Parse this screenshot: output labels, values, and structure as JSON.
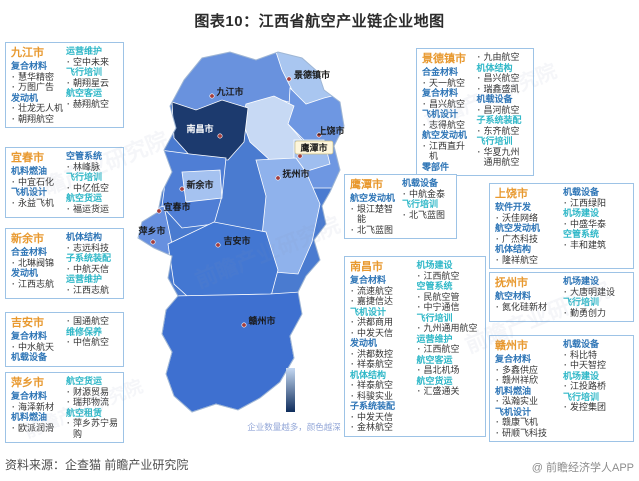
{
  "title": "图表10：江西省航空产业链企业地图",
  "footer": {
    "source": "资料来源：企查猫 前瞻产业研究院",
    "brand": "@ 前瞻经济学人APP"
  },
  "watermark": {
    "text": "前瞻产业研究院"
  },
  "legend": {
    "text": "企业数量越多，颜色越深",
    "top_color": "#C4D8F2",
    "bottom_color": "#0F2D5C"
  },
  "colors": {
    "city_title": "#E8992F",
    "category_blue": "#2E75B6",
    "category_cyan": "#31B8C8",
    "box_border": "#9DC3E6"
  },
  "city_boxes": [
    {
      "id": "jiujiang",
      "name": "九江市",
      "columns": [
        [
          {
            "cat": "复合材料",
            "tone": "b"
          },
          {
            "co": "慧华精密"
          },
          {
            "co": "万图广告"
          },
          {
            "cat": "发动机",
            "tone": "b"
          },
          {
            "co": "壮龙无人机"
          },
          {
            "co": "朝翔航空"
          }
        ],
        [
          {
            "cat": "运营维护",
            "tone": "c"
          },
          {
            "co": "空中未来"
          },
          {
            "cat": "飞行培训",
            "tone": "c"
          },
          {
            "co": "朝翔星云"
          },
          {
            "cat": "航空客运",
            "tone": "c"
          },
          {
            "co": "赫翔航空"
          }
        ]
      ]
    },
    {
      "id": "yichun",
      "name": "宜春市",
      "columns": [
        [
          {
            "cat": "机料燃油",
            "tone": "b"
          },
          {
            "co": "中宜石化"
          },
          {
            "cat": "飞机设计",
            "tone": "b"
          },
          {
            "co": "永益飞机"
          }
        ],
        [
          {
            "cat": "空管系统",
            "tone": "b"
          },
          {
            "co": "林峰脉"
          },
          {
            "cat": "飞行培训",
            "tone": "c"
          },
          {
            "co": "中亿低空"
          },
          {
            "cat": "航空货运",
            "tone": "c"
          },
          {
            "co": "福运货运"
          }
        ]
      ]
    },
    {
      "id": "xinyu",
      "name": "新余市",
      "columns": [
        [
          {
            "cat": "合金材料",
            "tone": "b"
          },
          {
            "co": "北琳阀锦"
          },
          {
            "cat": "发动机",
            "tone": "b"
          },
          {
            "co": "江西志航"
          }
        ],
        [
          {
            "cat": "机体结构",
            "tone": "b"
          },
          {
            "co": "志远科技"
          },
          {
            "cat": "子系统装配",
            "tone": "c"
          },
          {
            "co": "中航天信"
          },
          {
            "cat": "运营维护",
            "tone": "c"
          },
          {
            "co": "江西志航"
          }
        ]
      ]
    },
    {
      "id": "jian",
      "name": "吉安市",
      "columns": [
        [
          {
            "cat": "复合材料",
            "tone": "b"
          },
          {
            "co": "中水航天"
          },
          {
            "cat": "机载设备",
            "tone": "b"
          }
        ],
        [
          {
            "co": "国通航空"
          },
          {
            "cat": "维修保养",
            "tone": "c"
          },
          {
            "co": "中信航空"
          }
        ]
      ]
    },
    {
      "id": "pingxiang",
      "name": "萍乡市",
      "columns": [
        [
          {
            "cat": "复合材料",
            "tone": "b"
          },
          {
            "co": "海泽新材"
          },
          {
            "cat": "机料燃油",
            "tone": "b"
          },
          {
            "co": "欧派润滑"
          }
        ],
        [
          {
            "cat": "航空货运",
            "tone": "c"
          },
          {
            "co": "财源贸易"
          },
          {
            "co": "瑞邦物流"
          },
          {
            "cat": "航空租赁",
            "tone": "c"
          },
          {
            "co": "萍乡苏宁易购"
          }
        ]
      ]
    },
    {
      "id": "jingdezhen",
      "name": "景德镇市",
      "columns": [
        [
          {
            "cat": "合金材料",
            "tone": "b"
          },
          {
            "co": "天一航空"
          },
          {
            "cat": "复合材料",
            "tone": "b"
          },
          {
            "co": "昌兴航空"
          },
          {
            "cat": "飞机设计",
            "tone": "b"
          },
          {
            "co": "志得航空"
          },
          {
            "cat": "航空发动机",
            "tone": "b"
          },
          {
            "co": "江西直升机"
          },
          {
            "cat": "零部件",
            "tone": "b"
          }
        ],
        [
          {
            "co": "九由航空"
          },
          {
            "cat": "机体结构",
            "tone": "c"
          },
          {
            "co": "昌兴航空"
          },
          {
            "co": "瑞鑫盛凯"
          },
          {
            "cat": "机载设备",
            "tone": "b"
          },
          {
            "co": "昌河航空"
          },
          {
            "cat": "子系统装配",
            "tone": "c"
          },
          {
            "co": "东齐航空"
          },
          {
            "cat": "飞行培训",
            "tone": "c"
          },
          {
            "co": "华夏九州通用航空"
          }
        ]
      ]
    },
    {
      "id": "yingtan",
      "name": "鹰潭市",
      "columns": [
        [
          {
            "cat": "航空发动机",
            "tone": "b"
          },
          {
            "co": "垠江楚智能"
          },
          {
            "co": "北飞蓝图"
          }
        ],
        [
          {
            "cat": "机载设备",
            "tone": "b"
          },
          {
            "co": "中航金泰"
          },
          {
            "cat": "飞行培训",
            "tone": "c"
          },
          {
            "co": "北飞蓝图"
          }
        ]
      ]
    },
    {
      "id": "shangrao",
      "name": "上饶市",
      "columns": [
        [
          {
            "cat": "软件开发",
            "tone": "b"
          },
          {
            "co": "沃佳网络"
          },
          {
            "cat": "航空发动机",
            "tone": "b"
          },
          {
            "co": "广杰科技"
          },
          {
            "cat": "机体结构",
            "tone": "b"
          },
          {
            "co": "隆祥航空"
          }
        ],
        [
          {
            "cat": "机载设备",
            "tone": "b"
          },
          {
            "co": "江西绿阳"
          },
          {
            "cat": "机场建设",
            "tone": "c"
          },
          {
            "co": "中盛华泰"
          },
          {
            "cat": "空管系统",
            "tone": "c"
          },
          {
            "co": "丰和建筑"
          }
        ]
      ]
    },
    {
      "id": "fuzhou",
      "name": "抚州市",
      "columns": [
        [
          {
            "cat": "航空材料",
            "tone": "b"
          },
          {
            "co": "氮化硅新材"
          }
        ],
        [
          {
            "cat": "机场建设",
            "tone": "b"
          },
          {
            "co": "大唐明建设"
          },
          {
            "cat": "飞行培训",
            "tone": "c"
          },
          {
            "co": "勤勇创力"
          }
        ]
      ]
    },
    {
      "id": "ganzhou",
      "name": "赣州市",
      "columns": [
        [
          {
            "cat": "复合材料",
            "tone": "b"
          },
          {
            "co": "多鑫供应"
          },
          {
            "co": "赣州祥欣"
          },
          {
            "cat": "机料燃油",
            "tone": "b"
          },
          {
            "co": "泓瀚实业"
          },
          {
            "cat": "飞机设计",
            "tone": "b"
          },
          {
            "co": "赣康飞机"
          },
          {
            "co": "研顺飞科技"
          }
        ],
        [
          {
            "cat": "机载设备",
            "tone": "b"
          },
          {
            "co": "科比特"
          },
          {
            "co": "中天智控"
          },
          {
            "cat": "机场建设",
            "tone": "c"
          },
          {
            "co": "江投路桥"
          },
          {
            "cat": "飞行培训",
            "tone": "c"
          },
          {
            "co": "发控集团"
          }
        ]
      ]
    },
    {
      "id": "nanchang",
      "name": "南昌市",
      "columns": [
        [
          {
            "cat": "复合材料",
            "tone": "b"
          },
          {
            "co": "流速航空"
          },
          {
            "co": "嘉捷信达"
          },
          {
            "cat": "飞机设计",
            "tone": "c"
          },
          {
            "co": "洪都商用"
          },
          {
            "co": "中发天信"
          },
          {
            "cat": "发动机",
            "tone": "b"
          },
          {
            "co": "洪都数控"
          },
          {
            "co": "祥泰航空"
          },
          {
            "cat": "机体结构",
            "tone": "c"
          },
          {
            "co": "祥泰航空"
          },
          {
            "co": "科骏实业"
          },
          {
            "cat": "子系统装配",
            "tone": "b"
          },
          {
            "co": "中发天信"
          },
          {
            "co": "金林航空"
          }
        ],
        [
          {
            "cat": "机场建设",
            "tone": "c"
          },
          {
            "co": "江西航空"
          },
          {
            "cat": "空管系统",
            "tone": "c"
          },
          {
            "co": "民航空管"
          },
          {
            "co": "中宁通信"
          },
          {
            "cat": "飞行培训",
            "tone": "c"
          },
          {
            "co": "九州通用航空"
          },
          {
            "cat": "运营维护",
            "tone": "c"
          },
          {
            "co": "江西航空"
          },
          {
            "cat": "航空客运",
            "tone": "c"
          },
          {
            "co": "昌北机场"
          },
          {
            "cat": "航空货运",
            "tone": "c"
          },
          {
            "co": "汇盛通关"
          }
        ]
      ]
    }
  ],
  "chart_data": {
    "type": "heatmap",
    "title": "图表10：江西省航空产业链企业地图",
    "legend": "企业数量越多，颜色越深",
    "regions": [
      {
        "name": "九江市",
        "shade": "medium"
      },
      {
        "name": "景德镇市",
        "shade": "light"
      },
      {
        "name": "南昌市",
        "shade": "darkest"
      },
      {
        "name": "上饶市",
        "shade": "medium"
      },
      {
        "name": "鹰潭市",
        "shade": "light"
      },
      {
        "name": "抚州市",
        "shade": "medium-light"
      },
      {
        "name": "宜春市",
        "shade": "medium-dark"
      },
      {
        "name": "新余市",
        "shade": "light"
      },
      {
        "name": "萍乡市",
        "shade": "medium"
      },
      {
        "name": "吉安市",
        "shade": "medium-dark"
      },
      {
        "name": "赣州市",
        "shade": "medium-dark"
      }
    ]
  },
  "map": {
    "base_fill": "#4A7BD0",
    "lake_fill": "#C7D9F4",
    "regions": [
      {
        "id": "jiujiang",
        "label": "九江市",
        "fill": "#6992DE"
      },
      {
        "id": "jingdezhen",
        "label": "景德镇市",
        "fill": "#A9C6F0"
      },
      {
        "id": "shangrao",
        "label": "上饶市",
        "fill": "#6E97E2"
      },
      {
        "id": "nanchang",
        "label": "南昌市",
        "fill": "#1C3A6E"
      },
      {
        "id": "yingtan",
        "label": "鹰潭市",
        "fill": "#9FBEEF"
      },
      {
        "id": "fuzhou",
        "label": "抚州市",
        "fill": "#8FB2EC"
      },
      {
        "id": "yichun",
        "label": "宜春市",
        "fill": "#4F7ED5"
      },
      {
        "id": "xinyu",
        "label": "新余市",
        "fill": "#A5C2F0"
      },
      {
        "id": "pingxiang",
        "label": "萍乡市",
        "fill": "#6790DF"
      },
      {
        "id": "jian",
        "label": "吉安市",
        "fill": "#4377D2"
      },
      {
        "id": "ganzhou",
        "label": "赣州市",
        "fill": "#3E70D0"
      }
    ]
  }
}
